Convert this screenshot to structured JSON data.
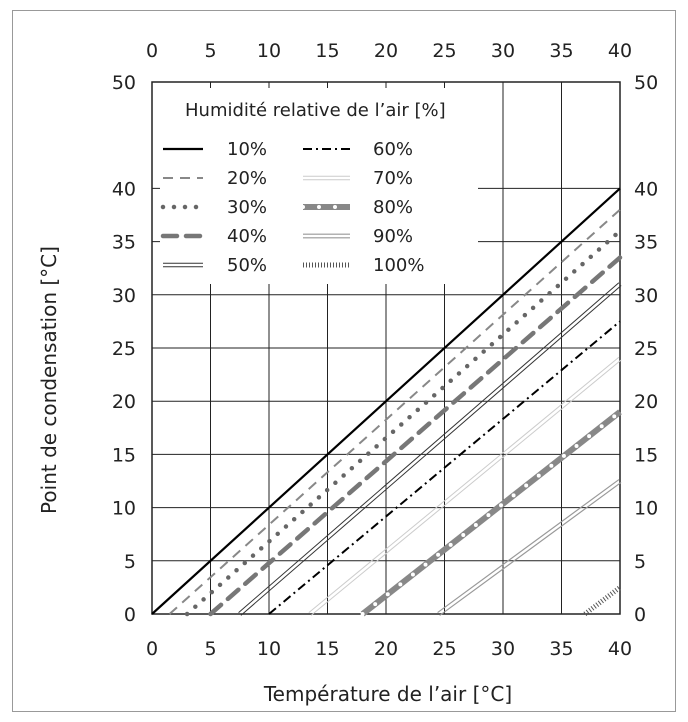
{
  "chart_data": {
    "type": "line",
    "title": "",
    "xlabel": "Température de l’air [°C]",
    "ylabel": "Point de condensation  [°C]",
    "xlim": [
      0,
      40
    ],
    "ylim": [
      0,
      50
    ],
    "x_ticks": [
      "0",
      "5",
      "10",
      "15",
      "20",
      "25",
      "30",
      "35",
      "40"
    ],
    "y_ticks": [
      "0",
      "5",
      "10",
      "15",
      "20",
      "25",
      "30",
      "35",
      "40",
      "50"
    ],
    "y_tick_values": [
      0,
      5,
      10,
      15,
      20,
      25,
      30,
      35,
      40,
      50
    ],
    "grid": true,
    "legend_title": "Humidité relative de l’air [%]",
    "legend_position": "top-left",
    "series": [
      {
        "name": "10%",
        "style": "solid-thick",
        "color": "#000000",
        "x": [
          0,
          40
        ],
        "y": [
          0,
          40
        ]
      },
      {
        "name": "20%",
        "style": "dashed",
        "color": "#888888",
        "x": [
          1.5,
          40
        ],
        "y": [
          0,
          38
        ]
      },
      {
        "name": "30%",
        "style": "dotted",
        "color": "#666666",
        "x": [
          3,
          40
        ],
        "y": [
          0,
          36
        ]
      },
      {
        "name": "40%",
        "style": "long-dash",
        "color": "#777777",
        "x": [
          5,
          40
        ],
        "y": [
          0,
          33.5
        ]
      },
      {
        "name": "50%",
        "style": "double",
        "color": "#333333",
        "x": [
          7.5,
          40
        ],
        "y": [
          0,
          31
        ]
      },
      {
        "name": "60%",
        "style": "dash-dot",
        "color": "#000000",
        "x": [
          10,
          40
        ],
        "y": [
          0,
          27.5
        ]
      },
      {
        "name": "70%",
        "style": "double-light",
        "color": "#cccccc",
        "x": [
          13.5,
          40
        ],
        "y": [
          0,
          24
        ]
      },
      {
        "name": "80%",
        "style": "thick-dotted",
        "color": "#888888",
        "x": [
          18,
          40
        ],
        "y": [
          0,
          19
        ]
      },
      {
        "name": "90%",
        "style": "double-gray",
        "color": "#999999",
        "x": [
          24.5,
          40
        ],
        "y": [
          0,
          12.5
        ]
      },
      {
        "name": "100%",
        "style": "hatched",
        "color": "#555555",
        "x": [
          37,
          40
        ],
        "y": [
          0,
          2.5
        ]
      }
    ]
  }
}
